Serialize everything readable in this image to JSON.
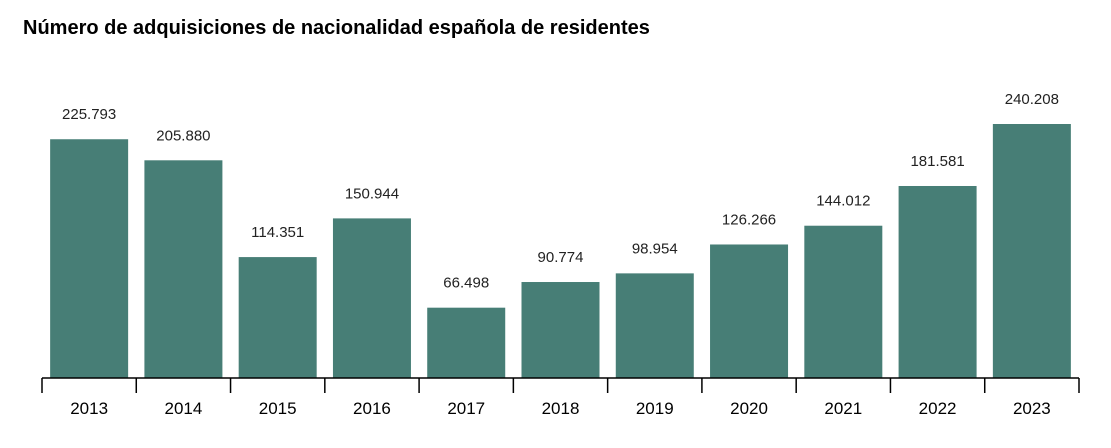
{
  "chart_data": {
    "type": "bar",
    "title": "Número de adquisiciones de nacionalidad española de residentes",
    "categories": [
      "2013",
      "2014",
      "2015",
      "2016",
      "2017",
      "2018",
      "2019",
      "2020",
      "2021",
      "2022",
      "2023"
    ],
    "values": [
      225793,
      205880,
      114351,
      150944,
      66498,
      90774,
      98954,
      126266,
      144012,
      181581,
      240208
    ],
    "value_labels": [
      "225.793",
      "205.880",
      "114.351",
      "150.944",
      "66.498",
      "90.774",
      "98.954",
      "126.266",
      "144.012",
      "181.581",
      "240.208"
    ],
    "xlabel": "",
    "ylabel": "",
    "ylim": [
      0,
      255000
    ],
    "grid": false,
    "legend": "none",
    "bar_color": "#477e76"
  }
}
